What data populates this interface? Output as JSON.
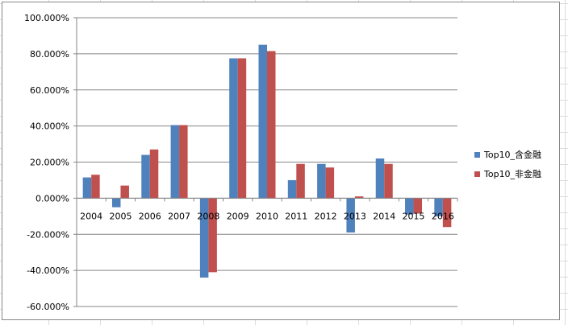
{
  "chart_data": {
    "type": "bar",
    "categories": [
      "2004",
      "2005",
      "2006",
      "2007",
      "2008",
      "2009",
      "2010",
      "2011",
      "2012",
      "2013",
      "2014",
      "2015",
      "2016"
    ],
    "series": [
      {
        "name": "Top10_含金融",
        "color": "#4f81bd",
        "values": [
          11.5,
          -5.0,
          24.0,
          40.5,
          -44.0,
          77.5,
          85.0,
          10.0,
          19.0,
          -19.0,
          22.0,
          -9.0,
          -10.0
        ]
      },
      {
        "name": "Top10_非金融",
        "color": "#c0504d",
        "values": [
          13.0,
          7.0,
          27.0,
          40.5,
          -41.0,
          77.5,
          81.5,
          19.0,
          17.0,
          1.0,
          19.0,
          -8.5,
          -16.0
        ]
      }
    ],
    "ylim": [
      -60,
      100
    ],
    "yticks": [
      100,
      80,
      60,
      40,
      20,
      0,
      -20,
      -40,
      -60
    ],
    "ytick_labels": [
      "100.000%",
      "80.000%",
      "60.000%",
      "40.000%",
      "20.000%",
      "0.000%",
      "-20.000%",
      "-40.000%",
      "-60.000%"
    ],
    "grid": true,
    "legend_position": "right",
    "title": "",
    "xlabel": "",
    "ylabel": ""
  }
}
